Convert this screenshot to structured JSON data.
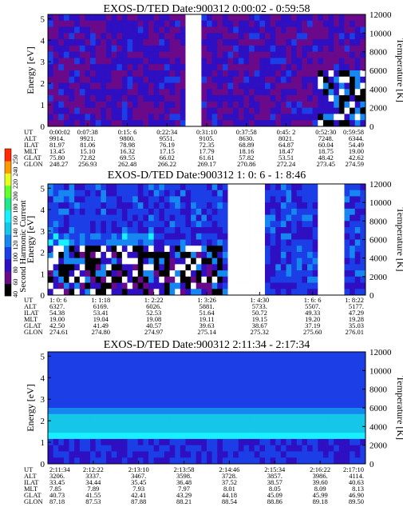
{
  "chart_data": [
    {
      "type": "heatmap",
      "title": "EXOS-D/TED   Date:900312  0:00:02 - 0:59:58",
      "ylabel": "Energy [eV]",
      "ylabel_right": "Temperature [K]",
      "y_ticks": [
        "0",
        "1",
        "2",
        "3",
        "4",
        "5"
      ],
      "ylim": [
        0,
        5.2
      ],
      "y2_ticks": [
        "0",
        "2000",
        "4000",
        "6000",
        "8000",
        "10000",
        "12000"
      ],
      "y2lim": [
        0,
        12000
      ],
      "x_ticks": [
        "0:00:02",
        "0:07:38",
        "0:15: 6",
        "0:22:34",
        "0:31:10",
        "0:37:58",
        "0:45: 2",
        "0:52:30",
        "0:59:58"
      ],
      "ephemeris": [
        {
          "label": "UT",
          "values": [
            "0:00:02",
            "0:07:38",
            "0:15: 6",
            "0:22:34",
            "0:31:10",
            "0:37:58",
            "0:45: 2",
            "0:52:30",
            "0:59:58"
          ]
        },
        {
          "label": "ALT",
          "values": [
            "9914.",
            "9921.",
            "9800.",
            "9551.",
            "9105.",
            "8630.",
            "8021.",
            "7248.",
            "6344."
          ]
        },
        {
          "label": "ILAT",
          "values": [
            "81.97",
            "81.06",
            "78.98",
            "76.19",
            "72.35",
            "68.89",
            "64.87",
            "60.04",
            "54.49"
          ]
        },
        {
          "label": "MLT",
          "values": [
            "13.45",
            "15.10",
            "16.32",
            "17.15",
            "17.79",
            "18.16",
            "18.47",
            "18.75",
            "19.00"
          ]
        },
        {
          "label": "GLAT",
          "values": [
            "75.80",
            "72.82",
            "69.55",
            "66.02",
            "61.61",
            "57.82",
            "53.51",
            "48.42",
            "42.62"
          ]
        },
        {
          "label": "GLON",
          "values": [
            "248.27",
            "256.93",
            "262.48",
            "266.22",
            "269.17",
            "270.86",
            "272.24",
            "273.45",
            "274.59"
          ]
        }
      ],
      "rows": 18,
      "cols": 60,
      "scene": "noisy",
      "gap_cols": [
        [
          26,
          28
        ]
      ]
    },
    {
      "type": "heatmap",
      "title": "EXOS-D/TED   Date:900312  1: 0: 6 - 1: 8:46",
      "ylabel": "Energy [eV]",
      "ylabel_right": "Temperature [K]",
      "y_ticks": [
        "0",
        "1",
        "2",
        "3",
        "4",
        "5"
      ],
      "ylim": [
        0,
        5.2
      ],
      "y2_ticks": [
        "0",
        "2000",
        "4000",
        "6000",
        "8000",
        "10000",
        "12000"
      ],
      "y2lim": [
        0,
        12000
      ],
      "x_ticks": [
        "1: 0: 6",
        "1: 1:18",
        "1: 2:22",
        "1: 3:26",
        "1: 4:30",
        "1: 6: 6",
        "1: 8:22"
      ],
      "ephemeris": [
        {
          "label": "UT",
          "values": [
            "1: 0: 6",
            "1: 1:18",
            "1: 2:22",
            "1: 3:26",
            "1: 4:30",
            "1: 6: 6",
            "1: 8:22"
          ]
        },
        {
          "label": "ALT",
          "values": [
            "6327.",
            "6169.",
            "6026.",
            "5881.",
            "5733.",
            "5507.",
            "5177."
          ]
        },
        {
          "label": "ILAT",
          "values": [
            "54.38",
            "53.41",
            "52.53",
            "51.64",
            "50.72",
            "49.33",
            "47.29"
          ]
        },
        {
          "label": "MLT",
          "values": [
            "19.00",
            "19.04",
            "19.08",
            "19.11",
            "19.15",
            "19.20",
            "19.28"
          ]
        },
        {
          "label": "GLAT",
          "values": [
            "42.50",
            "41.49",
            "40.57",
            "39.63",
            "38.67",
            "37.19",
            "35.03"
          ]
        },
        {
          "label": "GLON",
          "values": [
            "274.61",
            "274.80",
            "274.97",
            "275.14",
            "275.32",
            "275.60",
            "276.01"
          ]
        }
      ],
      "rows": 18,
      "cols": 60,
      "scene": "wave",
      "gap_cols": [
        [
          34,
          40
        ],
        [
          51,
          55
        ]
      ]
    },
    {
      "type": "heatmap",
      "title": "EXOS-D/TED   Date:900312  2:11:34 - 2:17:34",
      "ylabel": "Energy [eV]",
      "ylabel_right": "Temperature [K]",
      "y_ticks": [
        "0",
        "1",
        "2",
        "3",
        "4",
        "5"
      ],
      "ylim": [
        0,
        5.2
      ],
      "y2_ticks": [
        "0",
        "2000",
        "4000",
        "6000",
        "8000",
        "10000",
        "12000"
      ],
      "y2lim": [
        0,
        12000
      ],
      "x_ticks": [
        "2:11:34",
        "2:12:22",
        "2:13:10",
        "2:13:58",
        "2:14:46",
        "2:15:34",
        "2:16:22",
        "2:17:10"
      ],
      "ephemeris": [
        {
          "label": "UT",
          "values": [
            "2:11:34",
            "2:12:22",
            "2:13:10",
            "2:13:58",
            "2:14:46",
            "2:15:34",
            "2:16:22",
            "2:17:10"
          ]
        },
        {
          "label": "ALT",
          "values": [
            "3206.",
            "3337.",
            "3467.",
            "3598.",
            "3728.",
            "3857.",
            "3986.",
            "4114."
          ]
        },
        {
          "label": "ILAT",
          "values": [
            "33.45",
            "34.44",
            "35.45",
            "36.48",
            "37.52",
            "38.57",
            "39.60",
            "40.63"
          ]
        },
        {
          "label": "MLT",
          "values": [
            "7.85",
            "7.89",
            "7.93",
            "7.97",
            "8.01",
            "8.05",
            "8.09",
            "8.13"
          ]
        },
        {
          "label": "GLAT",
          "values": [
            "40.73",
            "41.55",
            "42.41",
            "43.29",
            "44.18",
            "45.09",
            "45.99",
            "46.90"
          ]
        },
        {
          "label": "GLON",
          "values": [
            "87.18",
            "87.53",
            "87.88",
            "88.21",
            "88.54",
            "88.86",
            "89.18",
            "89.50"
          ]
        }
      ],
      "rows": 18,
      "cols": 60,
      "scene": "bands",
      "gap_cols": []
    }
  ],
  "colorbar": {
    "label": "Second Harmonic Current",
    "ticks": [
      "40",
      "60",
      "80",
      "100",
      "120",
      "140",
      "160",
      "180",
      "200",
      "220",
      "240",
      "250"
    ],
    "colors": [
      "#000000",
      "#6a0a8a",
      "#2e0fc2",
      "#1c3ee6",
      "#1686f0",
      "#15c6e8",
      "#19f0ff",
      "#1ee88c",
      "#62ff2b",
      "#e6ff1f",
      "#ff9a00",
      "#ff2a00"
    ]
  },
  "palette": {
    "bg": "#3434c8",
    "deep": "#2e0fc2",
    "purple": "#6a0a8a",
    "mid": "#1c3ee6",
    "light": "#1686f0",
    "cyan": "#19f0ff",
    "aqua": "#15c6e8",
    "black": "#000000",
    "white": "#ffffff"
  }
}
